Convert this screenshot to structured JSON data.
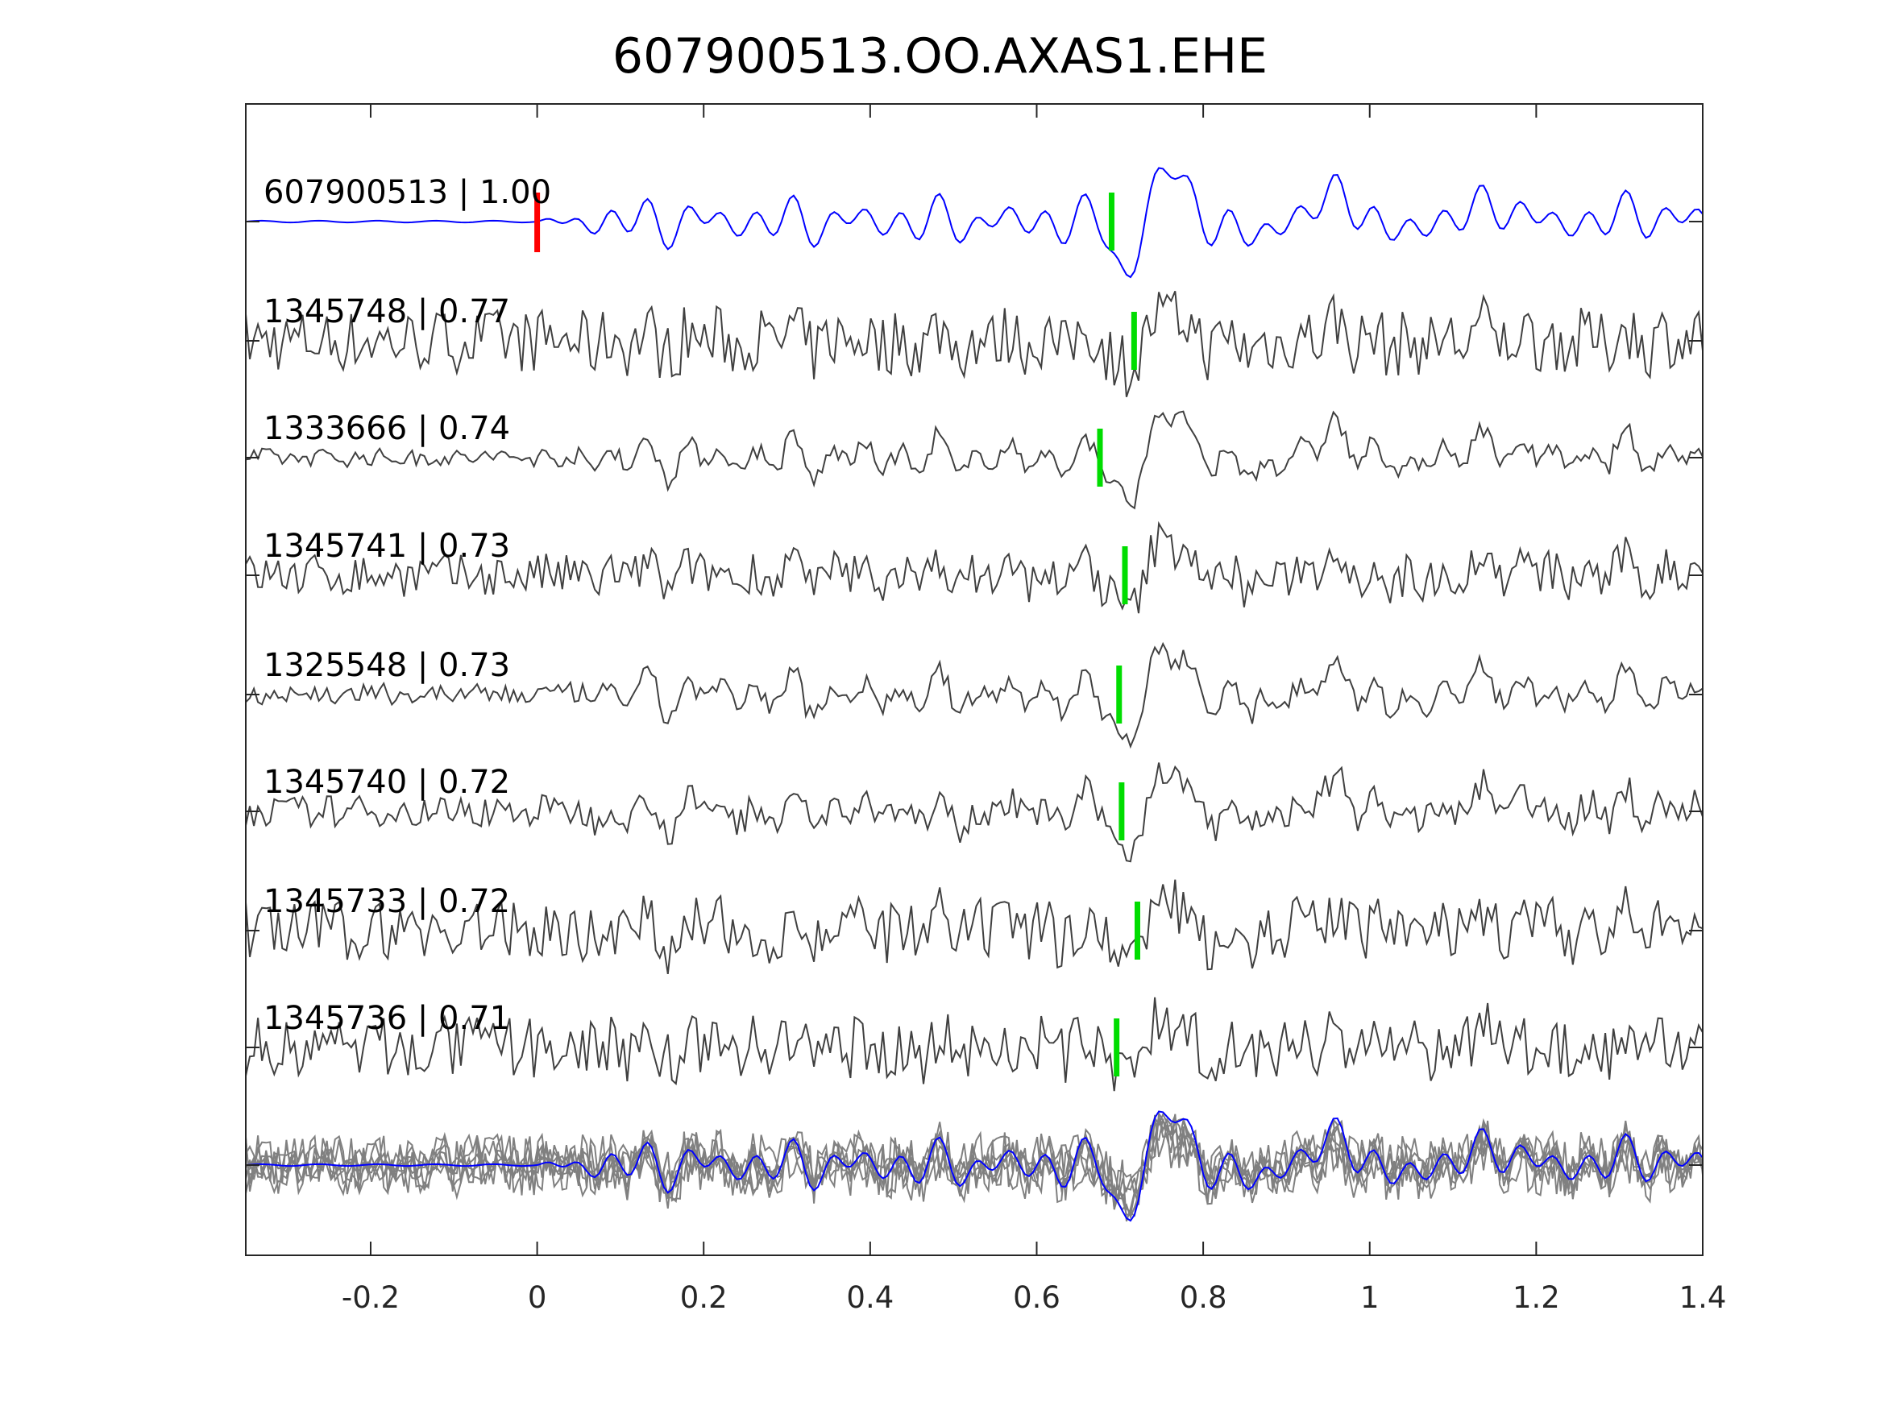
{
  "chart_data": {
    "type": "line",
    "title": "607900513.OO.AXAS1.EHE",
    "xlabel": "",
    "ylabel": "",
    "xlim": [
      -0.35,
      1.4
    ],
    "xticks": [
      -0.2,
      0,
      0.2,
      0.4,
      0.6,
      0.8,
      1,
      1.2,
      1.4
    ],
    "xtick_labels": [
      "-0.2",
      "0",
      "0.2",
      "0.4",
      "0.6",
      "0.8",
      "1",
      "1.2",
      "1.4"
    ],
    "grid": false,
    "reference_pick_time": 0,
    "colors": {
      "reference": "#0000ff",
      "trace": "#404040",
      "stack": "#808080",
      "reference_pick": "#ff0000",
      "pick": "#00dd00"
    },
    "traces": [
      {
        "id": "607900513",
        "cc": "1.00",
        "label": "607900513 | 1.00",
        "pick_time": 0.69,
        "reference": true
      },
      {
        "id": "1345748",
        "cc": "0.77",
        "label": "1345748 | 0.77",
        "pick_time": 0.717,
        "noise": 0.9
      },
      {
        "id": "1333666",
        "cc": "0.74",
        "label": "1333666 | 0.74",
        "pick_time": 0.676,
        "noise": 0.25
      },
      {
        "id": "1345741",
        "cc": "0.73",
        "label": "1345741 | 0.73",
        "pick_time": 0.706,
        "noise": 0.6
      },
      {
        "id": "1325548",
        "cc": "0.73",
        "label": "1325548 | 0.73",
        "pick_time": 0.699,
        "noise": 0.3
      },
      {
        "id": "1345740",
        "cc": "0.72",
        "label": "1345740 | 0.72",
        "pick_time": 0.702,
        "noise": 0.45
      },
      {
        "id": "1345733",
        "cc": "0.72",
        "label": "1345733 | 0.72",
        "pick_time": 0.721,
        "noise": 0.85
      },
      {
        "id": "1345736",
        "cc": "0.71",
        "label": "1345736 | 0.71",
        "pick_time": 0.696,
        "noise": 0.85
      }
    ]
  }
}
